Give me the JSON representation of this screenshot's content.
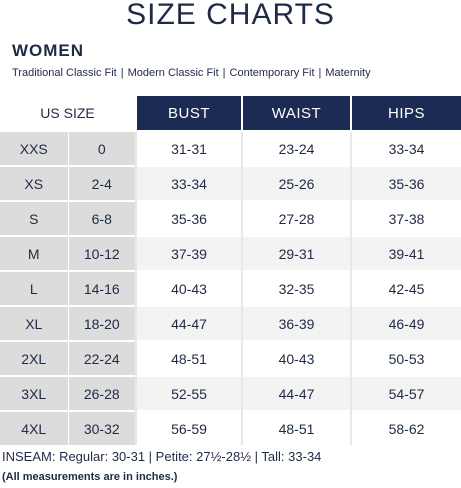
{
  "title": "SIZE CHARTS",
  "section": "WOMEN",
  "fits": [
    "Traditional Classic Fit",
    "Modern Classic Fit",
    "Contemporary Fit",
    "Maternity"
  ],
  "fit_separator": "|",
  "headers": {
    "us_size": "US SIZE",
    "bust": "BUST",
    "waist": "WAIST",
    "hips": "HIPS"
  },
  "rows": [
    {
      "size": "XXS",
      "num": "0",
      "bust": "31-31",
      "waist": "23-24",
      "hips": "33-34"
    },
    {
      "size": "XS",
      "num": "2-4",
      "bust": "33-34",
      "waist": "25-26",
      "hips": "35-36"
    },
    {
      "size": "S",
      "num": "6-8",
      "bust": "35-36",
      "waist": "27-28",
      "hips": "37-38"
    },
    {
      "size": "M",
      "num": "10-12",
      "bust": "37-39",
      "waist": "29-31",
      "hips": "39-41"
    },
    {
      "size": "L",
      "num": "14-16",
      "bust": "40-43",
      "waist": "32-35",
      "hips": "42-45"
    },
    {
      "size": "XL",
      "num": "18-20",
      "bust": "44-47",
      "waist": "36-39",
      "hips": "46-49"
    },
    {
      "size": "2XL",
      "num": "22-24",
      "bust": "48-51",
      "waist": "40-43",
      "hips": "50-53"
    },
    {
      "size": "3XL",
      "num": "26-28",
      "bust": "52-55",
      "waist": "44-47",
      "hips": "54-57"
    },
    {
      "size": "4XL",
      "num": "30-32",
      "bust": "56-59",
      "waist": "48-51",
      "hips": "58-62"
    }
  ],
  "inseam": "INSEAM:  Regular: 30-31  |  Petite: 27½-28½  |  Tall: 33-34",
  "note": "(All measurements are in inches.)",
  "colors": {
    "header_bg": "#1c2b53",
    "size_col_bg": "#dcdcdc",
    "text": "#1f2a44"
  }
}
